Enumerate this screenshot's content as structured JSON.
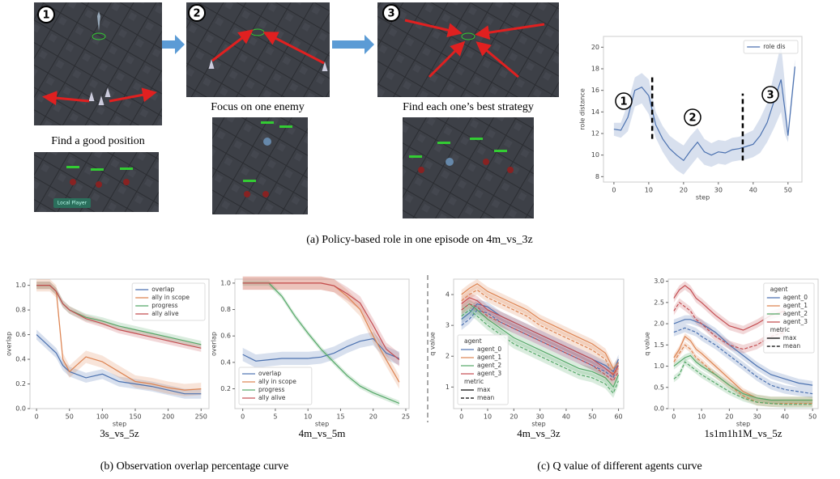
{
  "panels": {
    "a": {
      "caption": "(a) Policy-based role in one episode on 4m_vs_3z",
      "steps": [
        {
          "number": "1",
          "caption": "Find a good position"
        },
        {
          "number": "2",
          "caption": "Focus on one enemy"
        },
        {
          "number": "3",
          "caption": "Find each one’s best strategy"
        }
      ],
      "small_label": "Local Player"
    },
    "b": {
      "caption": "(b) Observation overlap percentage curve"
    },
    "c": {
      "caption": "(c) Q value of different agents curve"
    }
  },
  "chart_data": [
    {
      "type": "band_line",
      "xlabel": "step",
      "ylabel": "role distance",
      "legend": "upper right",
      "xlim": [
        -3,
        54
      ],
      "ylim": [
        7.5,
        21
      ],
      "xticks": [
        0,
        10,
        20,
        30,
        40,
        50
      ],
      "yticks": [
        8,
        10,
        12,
        14,
        16,
        18,
        20
      ],
      "x": [
        0,
        2,
        4,
        6,
        8,
        10,
        12,
        14,
        16,
        18,
        20,
        22,
        24,
        26,
        28,
        30,
        32,
        34,
        36,
        38,
        40,
        42,
        44,
        46,
        48,
        49,
        50,
        52
      ],
      "series": [
        {
          "name": "role dis",
          "color": "#4c72b0",
          "values": [
            12.4,
            12.3,
            13.5,
            16,
            16.3,
            15.5,
            12.8,
            11.5,
            10.6,
            10,
            9.5,
            10.4,
            11.2,
            10.3,
            10,
            10.3,
            10.2,
            10.5,
            10.6,
            10.8,
            11,
            11.8,
            13,
            15,
            17,
            14.5,
            11.8,
            18.2
          ],
          "lower": [
            11.8,
            11.6,
            12.2,
            14.5,
            14.8,
            13.8,
            11.6,
            10.3,
            9.3,
            8.6,
            8.2,
            9,
            9.8,
            9.1,
            8.9,
            9.2,
            9.1,
            9.4,
            9.5,
            9.6,
            9.8,
            10.2,
            11.2,
            12.5,
            14,
            12,
            11.2,
            17.5
          ],
          "upper": [
            13,
            13,
            14.8,
            17.2,
            17.6,
            17,
            14,
            12.7,
            11.8,
            11.3,
            10.9,
            11.8,
            12.5,
            11.5,
            11.1,
            11.4,
            11.3,
            11.6,
            11.7,
            12,
            12.3,
            13.4,
            14.8,
            17.5,
            20.3,
            17,
            12.4,
            18.9
          ]
        }
      ],
      "vlines": [
        {
          "x": 11,
          "ymin": 11.5,
          "ymax": 17.5
        },
        {
          "x": 37,
          "ymin": 9.5,
          "ymax": 15.7
        }
      ],
      "annotations": [
        "1",
        "2",
        "3"
      ]
    },
    {
      "type": "line",
      "caption": "3s_vs_5z",
      "xlabel": "step",
      "ylabel": "overlap",
      "legend": "upper right",
      "xlim": [
        -10,
        262
      ],
      "ylim": [
        0,
        1.05
      ],
      "xticks": [
        0,
        50,
        100,
        150,
        200,
        250
      ],
      "yticks": [
        {
          "value": 0,
          "label": "0.0"
        },
        {
          "value": 0.2,
          "label": "0.2"
        },
        {
          "value": 0.4,
          "label": "0.4"
        },
        {
          "value": 0.6,
          "label": "0.6"
        },
        {
          "value": 0.8,
          "label": "0.8"
        },
        {
          "value": 1,
          "label": "1.0"
        }
      ],
      "x": [
        0,
        10,
        20,
        30,
        40,
        50,
        75,
        100,
        125,
        150,
        175,
        200,
        225,
        250
      ],
      "series": [
        {
          "name": "overlap",
          "color": "#4c72b0",
          "error": 0.04,
          "values": [
            0.6,
            0.55,
            0.5,
            0.45,
            0.35,
            0.3,
            0.25,
            0.28,
            0.22,
            0.2,
            0.18,
            0.15,
            0.12,
            0.12
          ]
        },
        {
          "name": "ally in scope",
          "color": "#dd8452",
          "error": 0.05,
          "values": [
            1,
            1,
            1,
            0.95,
            0.4,
            0.3,
            0.42,
            0.38,
            0.3,
            0.22,
            0.2,
            0.17,
            0.15,
            0.16
          ]
        },
        {
          "name": "progress",
          "color": "#55a868",
          "error": 0.03,
          "values": [
            1,
            1,
            1,
            0.95,
            0.85,
            0.8,
            0.74,
            0.71,
            0.67,
            0.64,
            0.61,
            0.58,
            0.55,
            0.52
          ]
        },
        {
          "name": "ally alive",
          "color": "#c44e52",
          "error": 0.03,
          "values": [
            1,
            1,
            1,
            0.95,
            0.85,
            0.8,
            0.73,
            0.69,
            0.64,
            0.61,
            0.58,
            0.55,
            0.52,
            0.49
          ]
        }
      ]
    },
    {
      "type": "line",
      "caption": "4m_vs_5m",
      "xlabel": "step",
      "ylabel": "overlap",
      "legend": "lower left",
      "xlim": [
        -1.2,
        25.5
      ],
      "ylim": [
        0.05,
        1.03
      ],
      "xticks": [
        0,
        5,
        10,
        15,
        20,
        25
      ],
      "yticks": [
        {
          "value": 0.2,
          "label": "0.2"
        },
        {
          "value": 0.4,
          "label": "0.4"
        },
        {
          "value": 0.6,
          "label": "0.6"
        },
        {
          "value": 0.8,
          "label": "0.8"
        },
        {
          "value": 1,
          "label": "1.0"
        }
      ],
      "x": [
        0,
        2,
        4,
        6,
        8,
        10,
        12,
        14,
        16,
        18,
        20,
        22,
        24
      ],
      "series": [
        {
          "name": "overlap",
          "color": "#4c72b0",
          "error": 0.05,
          "values": [
            0.46,
            0.41,
            0.42,
            0.43,
            0.43,
            0.43,
            0.44,
            0.47,
            0.52,
            0.56,
            0.58,
            0.47,
            0.43
          ]
        },
        {
          "name": "ally in scope",
          "color": "#dd8452",
          "error": 0.05,
          "values": [
            1,
            1,
            1,
            1,
            1,
            1,
            1,
            0.98,
            0.9,
            0.8,
            0.6,
            0.42,
            0.25
          ]
        },
        {
          "name": "progress",
          "color": "#55a868",
          "error": 0.02,
          "values": [
            1,
            1,
            1,
            0.9,
            0.75,
            0.62,
            0.5,
            0.4,
            0.3,
            0.22,
            0.17,
            0.13,
            0.09
          ]
        },
        {
          "name": "ally alive",
          "color": "#c44e52",
          "error": 0.05,
          "values": [
            1,
            1,
            1,
            1,
            1,
            1,
            1,
            0.98,
            0.92,
            0.85,
            0.68,
            0.5,
            0.42
          ]
        }
      ]
    },
    {
      "type": "qline",
      "caption": "4m_vs_3z",
      "xlabel": "step",
      "ylabel": "q value",
      "legend": "lower left",
      "legend_title": "agent",
      "style_title": "metric",
      "styles": [
        "max",
        "mean"
      ],
      "xlim": [
        -3,
        62
      ],
      "ylim": [
        0.3,
        4.5
      ],
      "xticks": [
        0,
        10,
        20,
        30,
        40,
        50,
        60
      ],
      "yticks": [
        1,
        2,
        3,
        4
      ],
      "x": [
        0,
        3,
        6,
        10,
        15,
        20,
        25,
        30,
        35,
        40,
        45,
        50,
        55,
        58,
        60
      ],
      "series": [
        {
          "name": "agent_0",
          "color": "#4c72b0",
          "error": 0.15,
          "values": [
            3.2,
            3.4,
            3.7,
            3.6,
            3.3,
            3.1,
            2.9,
            2.7,
            2.5,
            2.3,
            2.1,
            1.9,
            1.7,
            1.5,
            1.9
          ],
          "mean_values": [
            3,
            3.2,
            3.5,
            3.4,
            3.1,
            2.9,
            2.7,
            2.5,
            2.3,
            2.1,
            1.9,
            1.7,
            1.5,
            1.3,
            1.8
          ]
        },
        {
          "name": "agent_1",
          "color": "#dd8452",
          "error": 0.15,
          "values": [
            4,
            4.2,
            4.35,
            4.1,
            3.9,
            3.7,
            3.5,
            3.2,
            3,
            2.8,
            2.6,
            2.4,
            2.1,
            1.6,
            1.8
          ],
          "mean_values": [
            3.8,
            4,
            4.15,
            3.9,
            3.7,
            3.5,
            3.3,
            3,
            2.8,
            2.6,
            2.4,
            2.2,
            1.9,
            1.4,
            1.6
          ]
        },
        {
          "name": "agent_2",
          "color": "#55a868",
          "error": 0.15,
          "values": [
            3.5,
            3.7,
            3.5,
            3.2,
            2.9,
            2.6,
            2.4,
            2.2,
            2,
            1.8,
            1.6,
            1.5,
            1.3,
            1,
            1.4
          ],
          "mean_values": [
            3.3,
            3.5,
            3.3,
            3,
            2.7,
            2.4,
            2.2,
            2,
            1.8,
            1.6,
            1.4,
            1.3,
            1.1,
            0.8,
            1.2
          ]
        },
        {
          "name": "agent_3",
          "color": "#c44e52",
          "error": 0.15,
          "values": [
            3.7,
            3.9,
            3.8,
            3.5,
            3.3,
            3.1,
            2.9,
            2.7,
            2.5,
            2.3,
            2.1,
            1.9,
            1.6,
            1.4,
            1.7
          ],
          "mean_values": [
            3.5,
            3.7,
            3.6,
            3.3,
            3.1,
            2.9,
            2.7,
            2.5,
            2.3,
            2.1,
            1.9,
            1.7,
            1.4,
            1.2,
            1.5
          ]
        }
      ]
    },
    {
      "type": "qline",
      "caption": "1s1m1h1M_vs_5z",
      "xlabel": "step",
      "ylabel": "q value",
      "legend": "upper right",
      "legend_title": "agent",
      "style_title": "metric",
      "styles": [
        "max",
        "mean"
      ],
      "xlim": [
        -2,
        52
      ],
      "ylim": [
        0,
        3.05
      ],
      "xticks": [
        0,
        10,
        20,
        30,
        40,
        50
      ],
      "yticks": [
        {
          "value": 0,
          "label": "0.0"
        },
        {
          "value": 0.5,
          "label": "0.5"
        },
        {
          "value": 1,
          "label": "1.0"
        },
        {
          "value": 1.5,
          "label": "1.5"
        },
        {
          "value": 2,
          "label": "2.0"
        },
        {
          "value": 2.5,
          "label": "2.5"
        },
        {
          "value": 3,
          "label": "3.0"
        }
      ],
      "x": [
        0,
        2,
        4,
        6,
        8,
        10,
        15,
        20,
        25,
        30,
        35,
        40,
        45,
        50
      ],
      "series": [
        {
          "name": "agent_0",
          "color": "#4c72b0",
          "error": 0.1,
          "values": [
            2,
            2.05,
            2.1,
            2.1,
            2.05,
            2,
            1.8,
            1.5,
            1.25,
            1,
            0.8,
            0.7,
            0.6,
            0.55
          ],
          "mean_values": [
            1.8,
            1.85,
            1.9,
            1.85,
            1.8,
            1.7,
            1.5,
            1.25,
            1,
            0.75,
            0.55,
            0.45,
            0.4,
            0.35
          ]
        },
        {
          "name": "agent_1",
          "color": "#dd8452",
          "error": 0.08,
          "values": [
            1.2,
            1.4,
            1.7,
            1.6,
            1.4,
            1.3,
            1,
            0.7,
            0.4,
            0.25,
            0.2,
            0.2,
            0.2,
            0.2
          ],
          "mean_values": [
            1.1,
            1.3,
            1.5,
            1.4,
            1.2,
            1.1,
            0.8,
            0.55,
            0.3,
            0.15,
            0.12,
            0.12,
            0.12,
            0.12
          ]
        },
        {
          "name": "agent_2",
          "color": "#55a868",
          "error": 0.08,
          "values": [
            1,
            1.1,
            1.2,
            1.25,
            1.1,
            1,
            0.8,
            0.55,
            0.35,
            0.25,
            0.2,
            0.2,
            0.2,
            0.2
          ],
          "mean_values": [
            0.7,
            0.8,
            1.1,
            1,
            0.9,
            0.8,
            0.6,
            0.4,
            0.25,
            0.15,
            0.12,
            0.1,
            0.1,
            0.1
          ]
        },
        {
          "name": "agent_3",
          "color": "#c44e52",
          "error": 0.1,
          "values": [
            2.6,
            2.8,
            2.9,
            2.8,
            2.6,
            2.5,
            2.2,
            1.95,
            1.85,
            2,
            2.2,
            2.3,
            null,
            null
          ],
          "mean_values": [
            2.3,
            2.5,
            2.4,
            2.3,
            2.1,
            2,
            1.7,
            1.5,
            1.4,
            1.5,
            1.7,
            1.8,
            null,
            null
          ]
        }
      ]
    }
  ]
}
